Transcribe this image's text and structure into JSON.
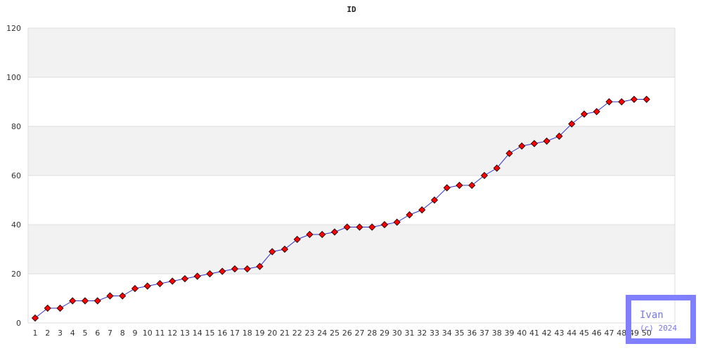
{
  "chart_data": {
    "type": "line",
    "title": "ID",
    "xlabel": "",
    "ylabel": "",
    "categories": [
      "1",
      "2",
      "3",
      "4",
      "5",
      "6",
      "7",
      "8",
      "9",
      "10",
      "11",
      "12",
      "13",
      "14",
      "15",
      "16",
      "17",
      "18",
      "19",
      "20",
      "21",
      "22",
      "23",
      "24",
      "25",
      "26",
      "27",
      "28",
      "29",
      "30",
      "31",
      "32",
      "33",
      "34",
      "35",
      "36",
      "37",
      "38",
      "39",
      "40",
      "41",
      "42",
      "43",
      "44",
      "45",
      "46",
      "47",
      "48",
      "49",
      "50"
    ],
    "yticks": [
      "0",
      "20",
      "40",
      "60",
      "80",
      "100",
      "120"
    ],
    "ylim": [
      0,
      120
    ],
    "series": [
      {
        "values": [
          2,
          6,
          6,
          9,
          9,
          9,
          11,
          11,
          14,
          15,
          16,
          17,
          18,
          19,
          20,
          21,
          22,
          22,
          23,
          29,
          30,
          34,
          36,
          36,
          37,
          39,
          39,
          39,
          40,
          41,
          44,
          46,
          50,
          55,
          56,
          56,
          60,
          63,
          69,
          72,
          73,
          74,
          76,
          81,
          85,
          86,
          90,
          90,
          91,
          91
        ],
        "line_color": "#3333cc",
        "marker_color": "#ff0000",
        "marker": "diamond"
      }
    ],
    "grid": true,
    "band_color": "#f2f2f2",
    "grid_color": "#dddddd"
  },
  "watermark": {
    "line1": "Ivan",
    "line2": "(c) 2024",
    "color": "#8080ff"
  }
}
